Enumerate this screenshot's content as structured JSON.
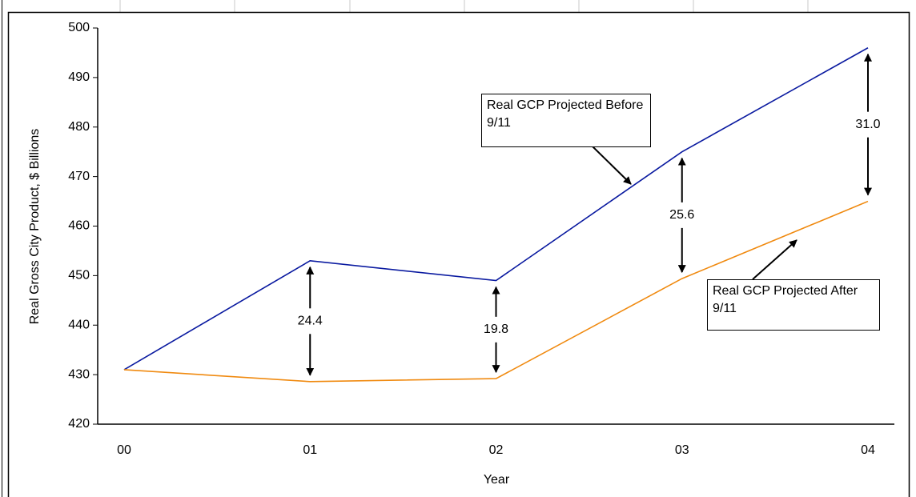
{
  "chart_data": {
    "type": "line",
    "x_label": "Year",
    "y_label": "Real Gross City Product, $ Billions",
    "categories": [
      "00",
      "01",
      "02",
      "03",
      "04"
    ],
    "series": [
      {
        "name": "Real GCP Projected Before 9/11",
        "color": "#0a1aa0",
        "values": [
          431,
          453,
          449,
          475,
          496
        ]
      },
      {
        "name": "Real GCP Projected After 9/11",
        "color": "#f08a10",
        "values": [
          431,
          428.6,
          429.2,
          449.4,
          465.0
        ]
      }
    ],
    "annotations": [
      {
        "text": "24.4",
        "category": "01"
      },
      {
        "text": "19.8",
        "category": "02"
      },
      {
        "text": "25.6",
        "category": "03"
      },
      {
        "text": "31.0",
        "category": "04"
      }
    ],
    "ylim": [
      420,
      500
    ],
    "yticks": [
      420,
      430,
      440,
      450,
      460,
      470,
      480,
      490,
      500
    ]
  }
}
